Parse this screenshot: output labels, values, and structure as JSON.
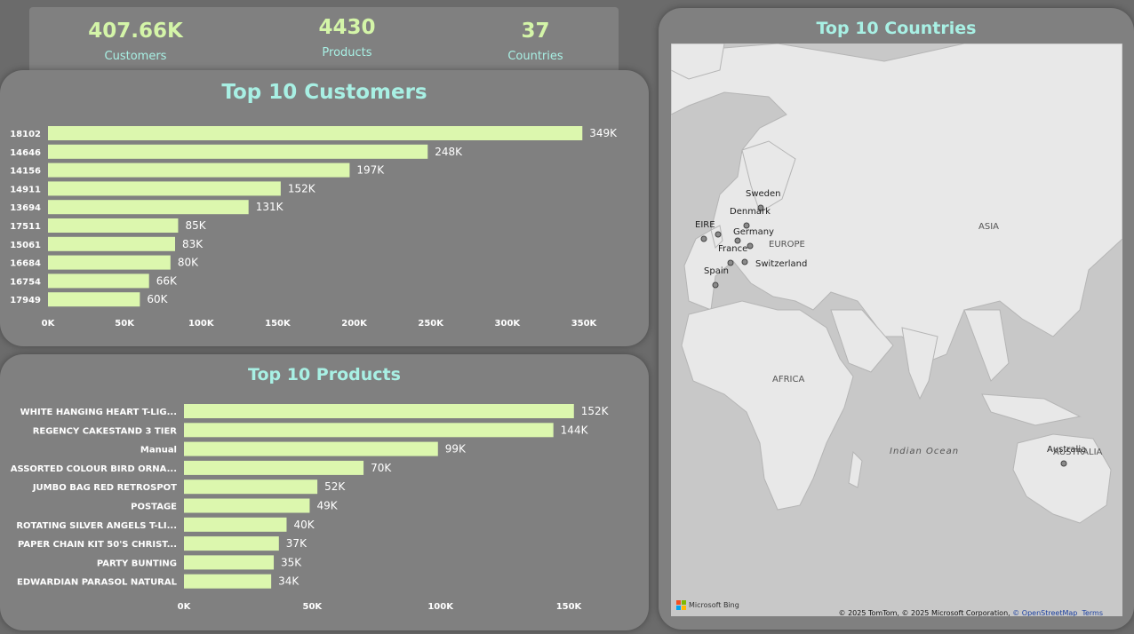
{
  "kpis": [
    {
      "value": "407.66K",
      "label": "Customers"
    },
    {
      "value": "4430",
      "label": "Products"
    },
    {
      "value": "37",
      "label": "Countries"
    }
  ],
  "customers_title": "Top 10 Customers",
  "products_title": "Top 10 Products",
  "map": {
    "title": "Top 10 Countries",
    "regions": [
      "EUROPE",
      "ASIA",
      "AFRICA",
      "Indian Ocean",
      "AUSTRALIA"
    ],
    "countries": [
      "Sweden",
      "Denmark",
      "EIRE",
      "Germany",
      "France",
      "Switzerland",
      "Spain",
      "Australia"
    ],
    "logo": "Microsoft Bing",
    "attribution": "© 2025 TomTom, © 2025 Microsoft Corporation,",
    "osm_link": "© OpenStreetMap",
    "terms_link": "Terms"
  },
  "colors": {
    "bar": "#dcf7ae",
    "title": "#a8f0e4",
    "kpi_value": "#d4f5a8"
  },
  "chart_data": [
    {
      "type": "bar",
      "orientation": "horizontal",
      "title": "Top 10 Customers",
      "categories": [
        "18102",
        "14646",
        "14156",
        "14911",
        "13694",
        "17511",
        "15061",
        "16684",
        "16754",
        "17949"
      ],
      "values": [
        349000,
        248000,
        197000,
        152000,
        131000,
        85000,
        83000,
        80000,
        66000,
        60000
      ],
      "value_labels": [
        "349K",
        "248K",
        "197K",
        "152K",
        "131K",
        "85K",
        "83K",
        "80K",
        "66K",
        "60K"
      ],
      "xticks": [
        0,
        50000,
        100000,
        150000,
        200000,
        250000,
        300000,
        350000
      ],
      "xtick_labels": [
        "0K",
        "50K",
        "100K",
        "150K",
        "200K",
        "250K",
        "300K",
        "350K"
      ],
      "xlim": [
        0,
        350000
      ],
      "grid": false
    },
    {
      "type": "bar",
      "orientation": "horizontal",
      "title": "Top 10 Products",
      "categories": [
        "WHITE HANGING HEART T-LIG...",
        "REGENCY CAKESTAND 3 TIER",
        "Manual",
        "ASSORTED COLOUR BIRD ORNA...",
        "JUMBO BAG RED RETROSPOT",
        "POSTAGE",
        "ROTATING SILVER ANGELS T-LI...",
        "PAPER CHAIN KIT 50'S CHRIST...",
        "PARTY BUNTING",
        "EDWARDIAN PARASOL NATURAL"
      ],
      "values": [
        152000,
        144000,
        99000,
        70000,
        52000,
        49000,
        40000,
        37000,
        35000,
        34000
      ],
      "value_labels": [
        "152K",
        "144K",
        "99K",
        "70K",
        "52K",
        "49K",
        "40K",
        "37K",
        "35K",
        "34K"
      ],
      "xticks": [
        0,
        50000,
        100000,
        150000
      ],
      "xtick_labels": [
        "0K",
        "50K",
        "100K",
        "150K"
      ],
      "xlim": [
        0,
        150000
      ],
      "grid": false
    }
  ]
}
